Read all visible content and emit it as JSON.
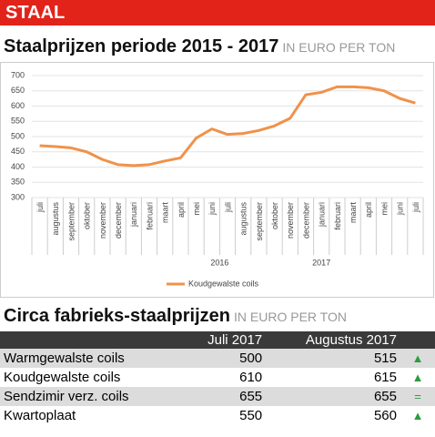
{
  "header": {
    "section": "STAAL"
  },
  "chart_data": {
    "type": "line",
    "title": "Staalprijzen periode 2015 - 2017",
    "subtitle": "IN EURO PER TON",
    "categories": [
      "juli",
      "augustus",
      "september",
      "oktober",
      "november",
      "december",
      "januari",
      "februari",
      "maart",
      "april",
      "mei",
      "juni",
      "juli",
      "augustus",
      "september",
      "oktober",
      "november",
      "december",
      "januari",
      "februari",
      "maart",
      "april",
      "mei",
      "juni",
      "juli"
    ],
    "year_labels": [
      "2016",
      "2017"
    ],
    "series": [
      {
        "name": "Koudgewalste coils",
        "color": "#f0924a",
        "values": [
          470,
          467,
          463,
          450,
          425,
          408,
          405,
          408,
          420,
          430,
          495,
          525,
          507,
          510,
          520,
          535,
          560,
          637,
          645,
          663,
          663,
          660,
          650,
          625,
          610
        ]
      }
    ],
    "ylim": [
      300,
      700
    ],
    "yticks": [
      300,
      350,
      400,
      450,
      500,
      550,
      600,
      650,
      700
    ],
    "grid": true
  },
  "table": {
    "title": "Circa fabrieks-staalprijzen",
    "subtitle": "IN EURO PER TON",
    "columns": [
      "Juli 2017",
      "Augustus 2017"
    ],
    "rows": [
      [
        "Warmgewalste coils",
        "500",
        "515",
        "▲"
      ],
      [
        "Koudgewalste coils",
        "610",
        "615",
        "▲"
      ],
      [
        "Sendzimir verz. coils",
        "655",
        "655",
        "="
      ],
      [
        "Kwartoplaat",
        "550",
        "560",
        "▲"
      ]
    ]
  }
}
